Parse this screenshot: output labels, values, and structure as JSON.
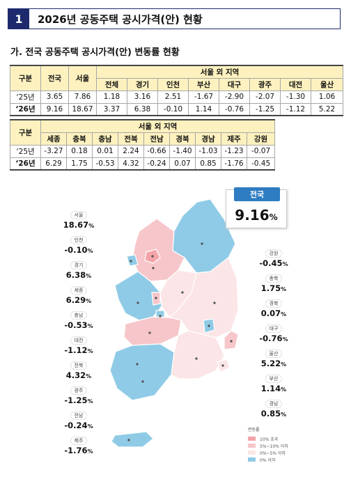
{
  "header": {
    "number": "1",
    "title": "2026년 공동주택 공시가격(안) 현황"
  },
  "section_title": "가. 전국 공동주택 공시가격(안) 변동률 현황",
  "table1": {
    "col_label": "구분",
    "col_national": "전국",
    "col_seoul": "서울",
    "group_header": "서울 외 지역",
    "sub_headers": [
      "전체",
      "경기",
      "인천",
      "부산",
      "대구",
      "광주",
      "대전",
      "울산"
    ],
    "rows": [
      {
        "label": "‘25년",
        "values": [
          "3.65",
          "7.86",
          "1.18",
          "3.16",
          "2.51",
          "-1.67",
          "-2.90",
          "-2.07",
          "-1.30",
          "1.06"
        ]
      },
      {
        "label": "‘26년",
        "values": [
          "9.16",
          "18.67",
          "3.37",
          "6.38",
          "-0.10",
          "1.14",
          "-0.76",
          "-1.25",
          "-1.12",
          "5.22"
        ]
      }
    ]
  },
  "table2": {
    "col_label": "구분",
    "group_header": "서울 외 지역",
    "sub_headers": [
      "세종",
      "충북",
      "충남",
      "전북",
      "전남",
      "경북",
      "경남",
      "제주",
      "강원"
    ],
    "rows": [
      {
        "label": "‘25년",
        "values": [
          "-3.27",
          "0.18",
          "0.01",
          "2.24",
          "-0.66",
          "-1.40",
          "-1.03",
          "-1.23",
          "-0.07"
        ]
      },
      {
        "label": "‘26년",
        "values": [
          "6.29",
          "1.75",
          "-0.53",
          "4.32",
          "-0.24",
          "0.07",
          "0.85",
          "-1.76",
          "-0.45"
        ]
      }
    ]
  },
  "national": {
    "label": "전국",
    "value": "9.16",
    "unit": "%"
  },
  "callouts_left": [
    {
      "name": "서울",
      "value": "18.67",
      "unit": "%"
    },
    {
      "name": "인천",
      "value": "-0.10",
      "unit": "%"
    },
    {
      "name": "경기",
      "value": "6.38",
      "unit": "%"
    },
    {
      "name": "세종",
      "value": "6.29",
      "unit": "%"
    },
    {
      "name": "충남",
      "value": "-0.53",
      "unit": "%"
    },
    {
      "name": "대전",
      "value": "-1.12",
      "unit": "%"
    },
    {
      "name": "전북",
      "value": "4.32",
      "unit": "%"
    },
    {
      "name": "광주",
      "value": "-1.25",
      "unit": "%"
    },
    {
      "name": "전남",
      "value": "-0.24",
      "unit": "%"
    },
    {
      "name": "제주",
      "value": "-1.76",
      "unit": "%"
    }
  ],
  "callouts_right": [
    {
      "name": "강원",
      "value": "-0.45",
      "unit": "%"
    },
    {
      "name": "충북",
      "value": "1.75",
      "unit": "%"
    },
    {
      "name": "경북",
      "value": "0.07",
      "unit": "%"
    },
    {
      "name": "대구",
      "value": "-0.76",
      "unit": "%"
    },
    {
      "name": "울산",
      "value": "5.22",
      "unit": "%"
    },
    {
      "name": "부산",
      "value": "1.14",
      "unit": "%"
    },
    {
      "name": "경남",
      "value": "0.85",
      "unit": "%"
    }
  ],
  "legend": {
    "title": "변동률",
    "items": [
      {
        "label": "10% 초과",
        "color": "#f4a3a8"
      },
      {
        "label": "5%~10% 이하",
        "color": "#f7c6ca"
      },
      {
        "label": "0%~5% 이하",
        "color": "#fce5e6"
      },
      {
        "label": "0% 이하",
        "color": "#8fcbe6"
      }
    ]
  },
  "colors": {
    "header_navy": "#1d2b6e",
    "table_header": "#fdf1bf",
    "tag_blue": "#2e7cc1"
  }
}
